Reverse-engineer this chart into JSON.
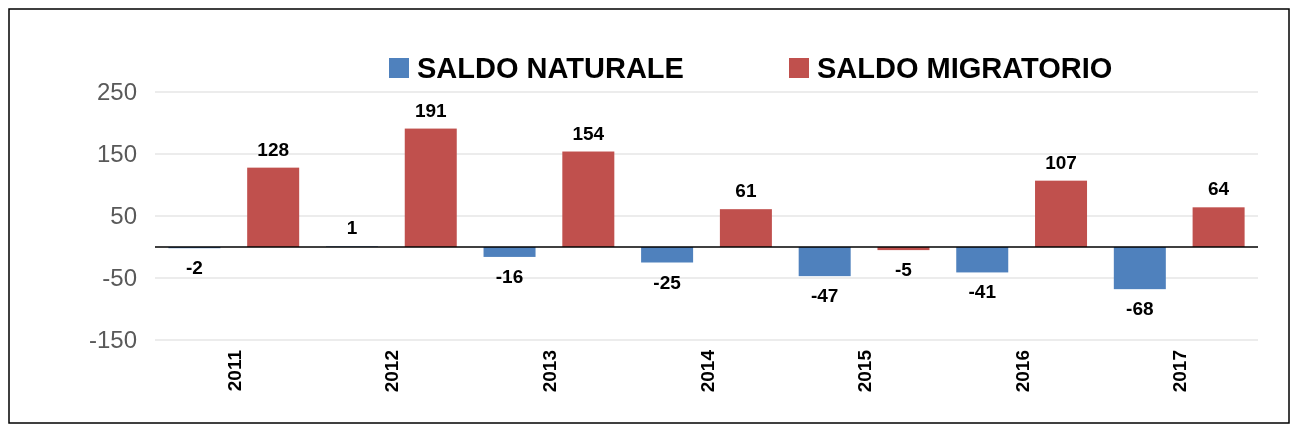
{
  "chart_data": {
    "type": "bar",
    "categories": [
      "2011",
      "2012",
      "2013",
      "2014",
      "2015",
      "2016",
      "2017"
    ],
    "series": [
      {
        "name": "SALDO NATURALE",
        "color": "#4f81bd",
        "values": [
          -2,
          1,
          -16,
          -25,
          -47,
          -41,
          -68
        ]
      },
      {
        "name": "SALDO MIGRATORIO",
        "color": "#c0504d",
        "values": [
          128,
          191,
          154,
          61,
          -5,
          107,
          64
        ]
      }
    ],
    "ylim": [
      -150,
      250
    ],
    "yticks": [
      -150,
      -50,
      50,
      150,
      250
    ],
    "grid": "y",
    "legend": "top",
    "data_labels": true
  }
}
